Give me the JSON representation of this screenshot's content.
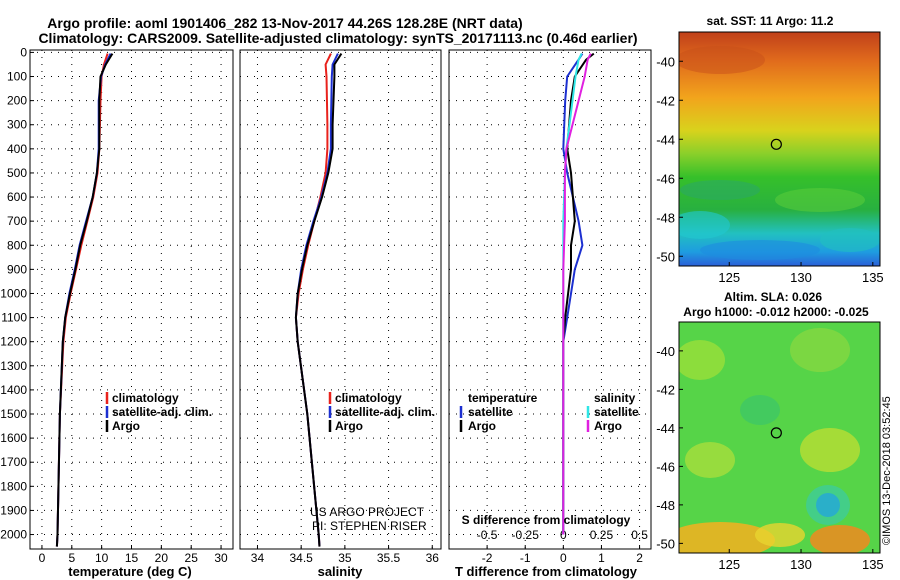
{
  "header": {
    "title_line1": "Argo profile: aoml 1901406_282 13-Nov-2017 44.26S 128.28E (NRT data)",
    "title_line2": "Climatology: CARS2009. Satellite-adjusted climatology: synTS_20171113.nc (0.46d earlier)"
  },
  "colors": {
    "climatology": "#e8221c",
    "satellite": "#1c2fd0",
    "argo": "#000000",
    "salinity_sat": "#2ee6e6",
    "salinity_argo": "#e020e0"
  },
  "credits": {
    "line1": "US ARGO PROJECT",
    "line2": "PI: STEPHEN RISER"
  },
  "timestamp": "©IMOS 13-Dec-2018 03:52:45",
  "depth_ticks": [
    "0",
    "100",
    "200",
    "300",
    "400",
    "500",
    "600",
    "700",
    "800",
    "900",
    "1000",
    "1100",
    "1200",
    "1300",
    "1400",
    "1500",
    "1600",
    "1700",
    "1800",
    "1900",
    "2000"
  ],
  "chart_data": [
    {
      "type": "line",
      "title": "",
      "xlabel": "temperature (deg C)",
      "ylabel": "",
      "xlim": [
        -2,
        32
      ],
      "ylim": [
        2060,
        -10
      ],
      "xticks": [
        "0",
        "5",
        "10",
        "15",
        "20",
        "25",
        "30"
      ],
      "legend": [
        "climatology",
        "satellite-adj. clim.",
        "Argo"
      ],
      "series": [
        {
          "name": "climatology",
          "depth": [
            5,
            50,
            100,
            200,
            400,
            500,
            600,
            700,
            800,
            900,
            1000,
            1100,
            1200,
            1500,
            2000,
            2050
          ],
          "values": [
            11.0,
            10.4,
            10.0,
            9.8,
            9.6,
            9.3,
            8.6,
            7.6,
            6.6,
            5.7,
            4.8,
            4.0,
            3.6,
            3.0,
            2.6,
            2.5
          ]
        },
        {
          "name": "satellite-adj. clim.",
          "depth": [
            5,
            50,
            100,
            200,
            400,
            500,
            600,
            700,
            800,
            900,
            1000,
            1100,
            1200,
            1500,
            2000,
            2050
          ],
          "values": [
            11.5,
            10.6,
            9.9,
            9.5,
            9.5,
            9.2,
            8.5,
            7.4,
            6.3,
            5.5,
            4.6,
            3.9,
            3.5,
            3.0,
            2.6,
            2.5
          ]
        },
        {
          "name": "Argo",
          "depth": [
            5,
            50,
            100,
            200,
            400,
            500,
            600,
            700,
            800,
            900,
            1000,
            1100,
            1200,
            1500,
            2000,
            2050
          ],
          "values": [
            11.8,
            10.7,
            9.8,
            9.6,
            9.6,
            9.2,
            8.5,
            7.5,
            6.4,
            5.6,
            4.7,
            3.9,
            3.5,
            3.0,
            2.6,
            2.5
          ]
        }
      ]
    },
    {
      "type": "line",
      "title": "",
      "xlabel": "salinity",
      "ylabel": "",
      "xlim": [
        33.8,
        36.1
      ],
      "ylim": [
        2060,
        -10
      ],
      "xticks": [
        "34",
        "34.5",
        "35",
        "35.5",
        "36"
      ],
      "legend": [
        "climatology",
        "satellite-adj. clim.",
        "Argo"
      ],
      "series": [
        {
          "name": "climatology",
          "depth": [
            5,
            50,
            100,
            300,
            400,
            500,
            600,
            700,
            800,
            900,
            1000,
            1100,
            1200,
            1500,
            2000,
            2050
          ],
          "values": [
            34.84,
            34.78,
            34.79,
            34.8,
            34.8,
            34.78,
            34.72,
            34.65,
            34.58,
            34.52,
            34.47,
            34.44,
            34.46,
            34.57,
            34.7,
            34.71
          ]
        },
        {
          "name": "satellite-adj. clim.",
          "depth": [
            5,
            50,
            100,
            300,
            400,
            500,
            600,
            700,
            800,
            900,
            1000,
            1100,
            1200,
            1500,
            2000,
            2050
          ],
          "values": [
            34.92,
            34.86,
            34.85,
            34.84,
            34.84,
            34.8,
            34.73,
            34.64,
            34.56,
            34.5,
            34.46,
            34.44,
            34.46,
            34.57,
            34.7,
            34.71
          ]
        },
        {
          "name": "Argo",
          "depth": [
            5,
            50,
            100,
            300,
            400,
            500,
            600,
            700,
            800,
            900,
            1000,
            1100,
            1200,
            1500,
            2000,
            2050
          ],
          "values": [
            34.96,
            34.88,
            34.88,
            34.86,
            34.86,
            34.81,
            34.74,
            34.65,
            34.57,
            34.51,
            34.46,
            34.44,
            34.46,
            34.57,
            34.7,
            34.71
          ]
        }
      ]
    },
    {
      "type": "line",
      "title": "",
      "xlabel": "T difference from climatology",
      "ylabel": "",
      "xlabel_top": "S difference from climatology",
      "xlim": [
        -3,
        2.3
      ],
      "ylim": [
        2060,
        -10
      ],
      "xticks": [
        "-2",
        "-1",
        "0",
        "1",
        "2"
      ],
      "xticks_top": [
        "-0.5",
        "-0.25",
        "0",
        "0.25",
        "0.5"
      ],
      "legend_left_title": "temperature",
      "legend_right_title": "salinity",
      "legend_left": [
        "satellite",
        "Argo"
      ],
      "legend_right": [
        "satellite",
        "Argo"
      ],
      "series": [
        {
          "name": "temperature satellite",
          "depth": [
            5,
            30,
            100,
            200,
            400,
            500,
            700,
            800,
            900,
            1100,
            1200,
            1500,
            2000
          ],
          "values": [
            0.5,
            0.4,
            0.1,
            0.05,
            0.0,
            0.1,
            0.4,
            0.5,
            0.3,
            0.1,
            0.0,
            0.0,
            0.0
          ]
        },
        {
          "name": "temperature Argo",
          "depth": [
            5,
            30,
            100,
            200,
            400,
            500,
            700,
            800,
            900,
            1100,
            1200,
            1500,
            2000
          ],
          "values": [
            0.8,
            0.6,
            0.3,
            0.2,
            0.1,
            0.2,
            0.3,
            0.2,
            0.2,
            0.05,
            0.0,
            0.0,
            0.0
          ]
        },
        {
          "name": "salinity satellite",
          "depth": [
            5,
            30,
            100,
            200,
            400,
            500,
            700,
            900,
            1100,
            1500,
            2000
          ],
          "values": [
            0.12,
            0.1,
            0.08,
            0.06,
            0.02,
            0.01,
            0.0,
            0.0,
            0.0,
            0.0,
            0.0
          ]
        },
        {
          "name": "salinity Argo",
          "depth": [
            5,
            30,
            100,
            200,
            400,
            500,
            700,
            900,
            1100,
            1500,
            2000
          ],
          "values": [
            0.18,
            0.16,
            0.14,
            0.1,
            0.02,
            0.01,
            0.01,
            0.0,
            0.0,
            0.0,
            0.0
          ]
        }
      ]
    },
    {
      "type": "heatmap",
      "title": "sat. SST: 11 Argo: 11.2",
      "xlabel": "",
      "ylabel": "",
      "xlim": [
        121.5,
        135.5
      ],
      "ylim": [
        -50.5,
        -38.5
      ],
      "xticks": [
        "125",
        "130",
        "135"
      ],
      "yticks": [
        "-40",
        "-42",
        "-44",
        "-46",
        "-48",
        "-50"
      ],
      "marker": {
        "lon": 128.28,
        "lat": -44.26
      }
    },
    {
      "type": "heatmap",
      "title": "Altim. SLA: 0.026",
      "subtitle": "Argo h1000: -0.012 h2000: -0.025",
      "xlabel": "",
      "ylabel": "",
      "xlim": [
        121.5,
        135.5
      ],
      "ylim": [
        -50.5,
        -38.5
      ],
      "xticks": [
        "125",
        "130",
        "135"
      ],
      "yticks": [
        "-40",
        "-42",
        "-44",
        "-46",
        "-48",
        "-50"
      ],
      "marker": {
        "lon": 128.28,
        "lat": -44.26
      }
    }
  ]
}
